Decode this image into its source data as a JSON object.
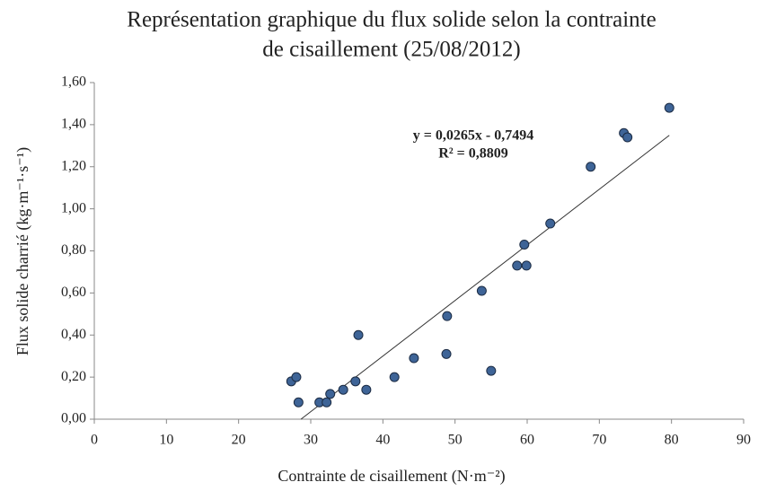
{
  "chart_data": {
    "type": "scatter",
    "title": [
      "Représentation graphique du flux solide selon la contrainte",
      "de cisaillement (25/08/2012)"
    ],
    "x_label": "Contrainte de cisaillement (N·m⁻²)",
    "y_label": "Flux solide charrié (kg·m⁻¹·s⁻¹)",
    "series": [
      {
        "name": "Flux solide",
        "color": "#3e6497",
        "x": [
          27.3,
          28.0,
          28.3,
          31.2,
          32.2,
          32.7,
          34.5,
          36.2,
          36.6,
          37.7,
          41.6,
          44.3,
          48.8,
          48.9,
          53.7,
          55.0,
          58.6,
          59.9,
          59.6,
          63.2,
          68.8,
          73.4,
          73.9,
          79.7
        ],
        "values": [
          0.18,
          0.2,
          0.08,
          0.08,
          0.08,
          0.12,
          0.14,
          0.18,
          0.4,
          0.14,
          0.2,
          0.29,
          0.31,
          0.49,
          0.61,
          0.23,
          0.73,
          0.73,
          0.83,
          0.93,
          1.2,
          1.36,
          1.34,
          1.48
        ]
      }
    ],
    "trendline": {
      "equation": "y = 0,0265x - 0,7494",
      "r2": "R² = 0,8809"
    },
    "xlim": [
      0,
      90
    ],
    "xticks": [
      0,
      10,
      20,
      30,
      40,
      50,
      60,
      70,
      80,
      90
    ],
    "ylim": [
      0,
      1.6
    ],
    "yticks": [
      {
        "value": 0,
        "label": "0,00"
      },
      {
        "value": 0.2,
        "label": "0,20"
      },
      {
        "value": 0.4,
        "label": "0,40"
      },
      {
        "value": 0.6,
        "label": "0,60"
      },
      {
        "value": 0.8,
        "label": "0,80"
      },
      {
        "value": 1.0,
        "label": "1,00"
      },
      {
        "value": 1.2,
        "label": "1,20"
      },
      {
        "value": 1.4,
        "label": "1,40"
      },
      {
        "value": 1.6,
        "label": "1,60"
      }
    ]
  }
}
